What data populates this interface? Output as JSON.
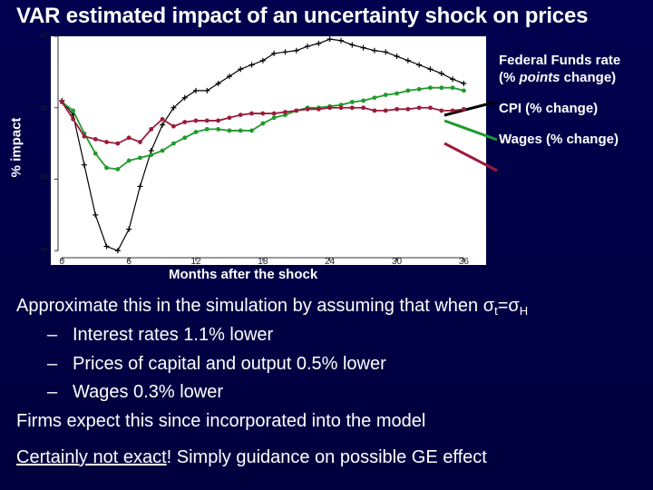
{
  "title": "VAR estimated impact of an uncertainty shock on prices",
  "chart_data": {
    "type": "line",
    "xlabel": "Months after the shock",
    "ylabel": "% impact",
    "x_ticks": [
      "0",
      "6",
      "12",
      "18",
      "24",
      "30",
      "36"
    ],
    "y_ticks": [
      "-1",
      "-.5",
      "0",
      ".5"
    ],
    "xlim": [
      -1,
      38
    ],
    "ylim": [
      -1.1,
      0.5
    ],
    "x": [
      0,
      1,
      2,
      3,
      4,
      5,
      6,
      7,
      8,
      9,
      10,
      11,
      12,
      13,
      14,
      15,
      16,
      17,
      18,
      19,
      20,
      21,
      22,
      23,
      24,
      25,
      26,
      27,
      28,
      29,
      30,
      31,
      32,
      33,
      34,
      35,
      36
    ],
    "series": [
      {
        "name": "Federal Funds rate (% points change)",
        "name_parts": [
          "Federal Funds rate",
          "(% ",
          "points",
          " change)"
        ],
        "color": "#000000",
        "marker": "plus",
        "values": [
          0.05,
          -0.05,
          -0.4,
          -0.75,
          -0.97,
          -1.0,
          -0.85,
          -0.55,
          -0.3,
          -0.12,
          0.0,
          0.07,
          0.12,
          0.12,
          0.17,
          0.22,
          0.27,
          0.3,
          0.33,
          0.38,
          0.39,
          0.4,
          0.43,
          0.45,
          0.48,
          0.47,
          0.44,
          0.42,
          0.4,
          0.39,
          0.36,
          0.33,
          0.3,
          0.27,
          0.24,
          0.2,
          0.17
        ]
      },
      {
        "name": "CPI (% change)",
        "color": "#1f9a2c",
        "marker": "dot",
        "values": [
          0.04,
          -0.02,
          -0.18,
          -0.32,
          -0.42,
          -0.43,
          -0.37,
          -0.35,
          -0.33,
          -0.3,
          -0.25,
          -0.21,
          -0.17,
          -0.15,
          -0.15,
          -0.16,
          -0.16,
          -0.16,
          -0.11,
          -0.07,
          -0.05,
          -0.02,
          0.0,
          0.0,
          0.01,
          0.02,
          0.04,
          0.05,
          0.07,
          0.09,
          0.1,
          0.12,
          0.13,
          0.14,
          0.14,
          0.14,
          0.12
        ]
      },
      {
        "name": "Wages (% change)",
        "color": "#9a1b3a",
        "marker": "dot",
        "values": [
          0.04,
          -0.08,
          -0.2,
          -0.22,
          -0.24,
          -0.25,
          -0.21,
          -0.24,
          -0.15,
          -0.08,
          -0.13,
          -0.1,
          -0.09,
          -0.09,
          -0.09,
          -0.07,
          -0.05,
          -0.04,
          -0.04,
          -0.04,
          -0.03,
          -0.02,
          -0.01,
          -0.01,
          0.0,
          0.0,
          0.0,
          0.0,
          -0.02,
          -0.02,
          -0.01,
          -0.01,
          0.0,
          0.0,
          -0.02,
          -0.02,
          -0.01
        ]
      }
    ],
    "plot_background": "#ffffff",
    "grid": false,
    "legend": "right, outside plot with pointer lines"
  },
  "text": {
    "line1_main": "Approximate this in the simulation by assuming that when σ",
    "line1_sub1": "t",
    "line1_mid": "=σ",
    "line1_sub2": "H",
    "bullets": [
      "Interest rates 1.1% lower",
      "Prices of capital and output 0.5% lower",
      "Wages 0.3% lower"
    ],
    "bullet_marker": "–",
    "line5": "Firms expect this since incorporated into the model",
    "line6_underlined": "Certainly not exact",
    "line6_rest": "! Simply guidance on possible GE effect"
  }
}
